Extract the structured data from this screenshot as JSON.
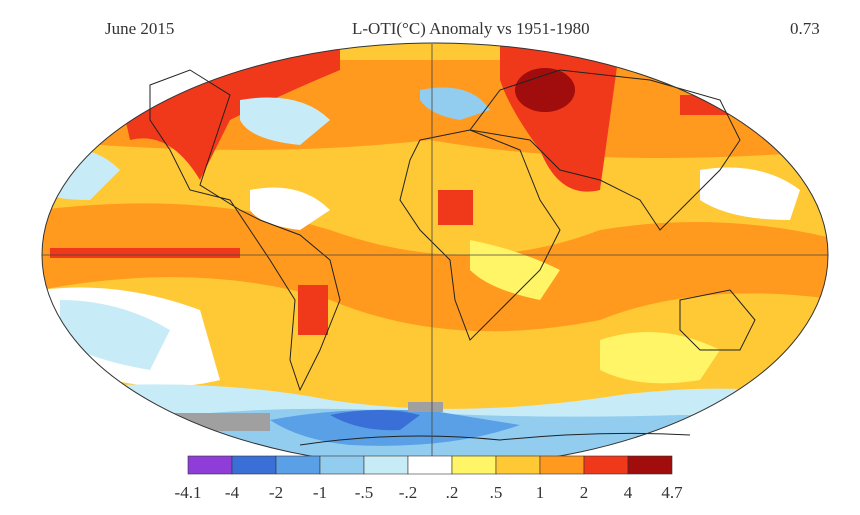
{
  "header": {
    "date": "June 2015",
    "title": "L-OTI(°C) Anomaly vs 1951-1980",
    "global_mean": "0.73"
  },
  "legend": {
    "labels": [
      "-4.1",
      "-4",
      "-2",
      "-1",
      "-.5",
      "-.2",
      ".2",
      ".5",
      "1",
      "2",
      "4",
      "4.7"
    ],
    "colors": [
      "#8f3dd9",
      "#3a6fd8",
      "#5aa0e6",
      "#92cdf0",
      "#c8ecf7",
      "#ffffff",
      "#fff566",
      "#ffc935",
      "#ff9a1e",
      "#f0381a",
      "#a10c0c"
    ]
  }
}
